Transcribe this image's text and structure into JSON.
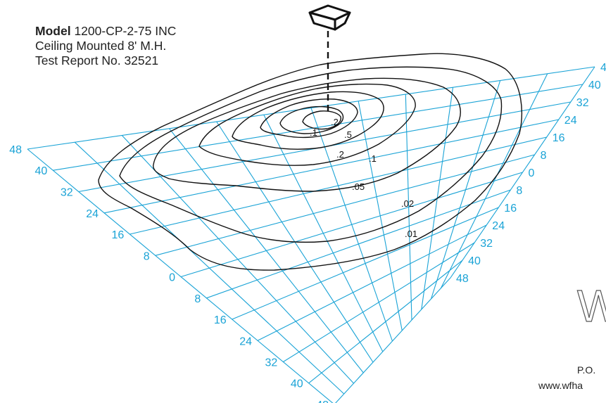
{
  "info": {
    "model_label": "Model",
    "model_value": "1200-CP-2-75 INC",
    "line2": "Ceiling Mounted 8' M.H.",
    "line3": "Test Report No. 32521"
  },
  "axis_ticks": [
    "48",
    "40",
    "32",
    "24",
    "16",
    "8",
    "0",
    "8",
    "16",
    "24",
    "32",
    "40",
    "48"
  ],
  "contour_labels": [
    ".2",
    ".1",
    ".5",
    ".2",
    ".1",
    ".05",
    ".02",
    ".01"
  ],
  "footer": {
    "po_fragment": "P.O.",
    "web_fragment": "www.wfha"
  },
  "logo_fragment": "W",
  "colors": {
    "grid": "#1aa3d6",
    "contour": "#111111",
    "text": "#222222"
  }
}
